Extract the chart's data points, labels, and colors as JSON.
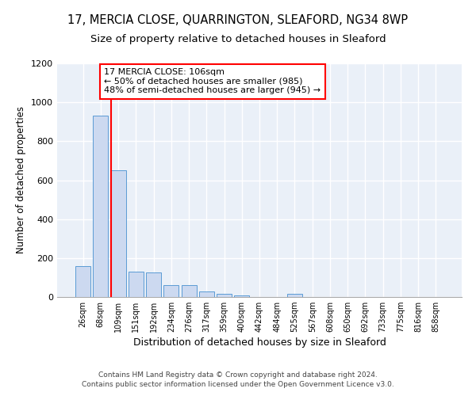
{
  "title1": "17, MERCIA CLOSE, QUARRINGTON, SLEAFORD, NG34 8WP",
  "title2": "Size of property relative to detached houses in Sleaford",
  "xlabel": "Distribution of detached houses by size in Sleaford",
  "ylabel": "Number of detached properties",
  "bar_labels": [
    "26sqm",
    "68sqm",
    "109sqm",
    "151sqm",
    "192sqm",
    "234sqm",
    "276sqm",
    "317sqm",
    "359sqm",
    "400sqm",
    "442sqm",
    "484sqm",
    "525sqm",
    "567sqm",
    "608sqm",
    "650sqm",
    "692sqm",
    "733sqm",
    "775sqm",
    "816sqm",
    "858sqm"
  ],
  "bar_values": [
    160,
    930,
    650,
    130,
    125,
    62,
    62,
    28,
    15,
    10,
    0,
    0,
    15,
    0,
    0,
    0,
    0,
    0,
    0,
    0,
    0
  ],
  "bar_color": "#ccd9f0",
  "bar_edge_color": "#5b9bd5",
  "red_line_index": 2,
  "annotation_text": "17 MERCIA CLOSE: 106sqm\n← 50% of detached houses are smaller (985)\n48% of semi-detached houses are larger (945) →",
  "annotation_box_color": "white",
  "annotation_box_edge_color": "red",
  "ylim": [
    0,
    1200
  ],
  "yticks": [
    0,
    200,
    400,
    600,
    800,
    1000,
    1200
  ],
  "footnote": "Contains HM Land Registry data © Crown copyright and database right 2024.\nContains public sector information licensed under the Open Government Licence v3.0.",
  "bg_color": "#eaf0f8",
  "grid_color": "white",
  "title1_fontsize": 10.5,
  "title2_fontsize": 9.5,
  "xlabel_fontsize": 9,
  "ylabel_fontsize": 8.5,
  "annotation_fontsize": 8,
  "footnote_fontsize": 6.5
}
